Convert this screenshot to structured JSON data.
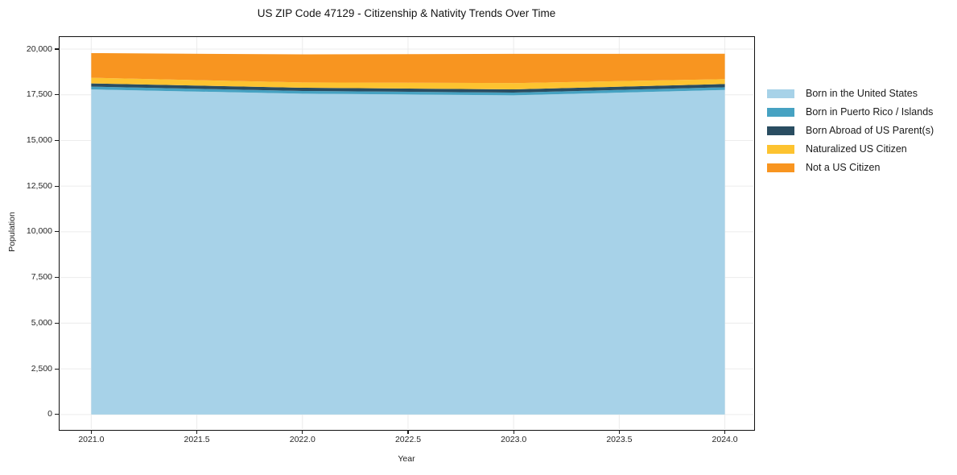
{
  "title": "US ZIP Code 47129 - Citizenship & Nativity Trends Over Time",
  "chart_data": {
    "type": "area",
    "stacked": true,
    "title": "US ZIP Code 47129 - Citizenship & Nativity Trends Over Time",
    "xlabel": "Year",
    "ylabel": "Population",
    "x": [
      2021,
      2022,
      2023,
      2024
    ],
    "series": [
      {
        "name": "Born in the United States",
        "color": "#a7d2e8",
        "values": [
          17790,
          17560,
          17470,
          17765
        ]
      },
      {
        "name": "Born in Puerto Rico / Islands",
        "color": "#46a2c2",
        "values": [
          155,
          150,
          150,
          145
        ]
      },
      {
        "name": "Born Abroad of US Parent(s)",
        "color": "#2a4d61",
        "values": [
          175,
          175,
          175,
          180
        ]
      },
      {
        "name": "Naturalized US Citizen",
        "color": "#fdc330",
        "values": [
          310,
          290,
          345,
          265
        ]
      },
      {
        "name": "Not a US Citizen",
        "color": "#f89520",
        "values": [
          1350,
          1535,
          1600,
          1390
        ]
      }
    ],
    "x_tick_labels": [
      "2021.0",
      "2021.5",
      "2022.0",
      "2022.5",
      "2023.0",
      "2023.5",
      "2024.0"
    ],
    "x_tick_values": [
      2021,
      2021.5,
      2022,
      2022.5,
      2023,
      2023.5,
      2024
    ],
    "y_tick_labels": [
      "0",
      "2,500",
      "5,000",
      "7,500",
      "10,000",
      "12,500",
      "15,000",
      "17,500",
      "20,000"
    ],
    "y_tick_values": [
      0,
      2500,
      5000,
      7500,
      10000,
      12500,
      15000,
      17500,
      20000
    ],
    "xlim": [
      2020.85,
      2024.135
    ],
    "ylim": [
      -800,
      20660
    ],
    "grid": true,
    "grid_color": "#ececec",
    "legend_position": "right"
  }
}
